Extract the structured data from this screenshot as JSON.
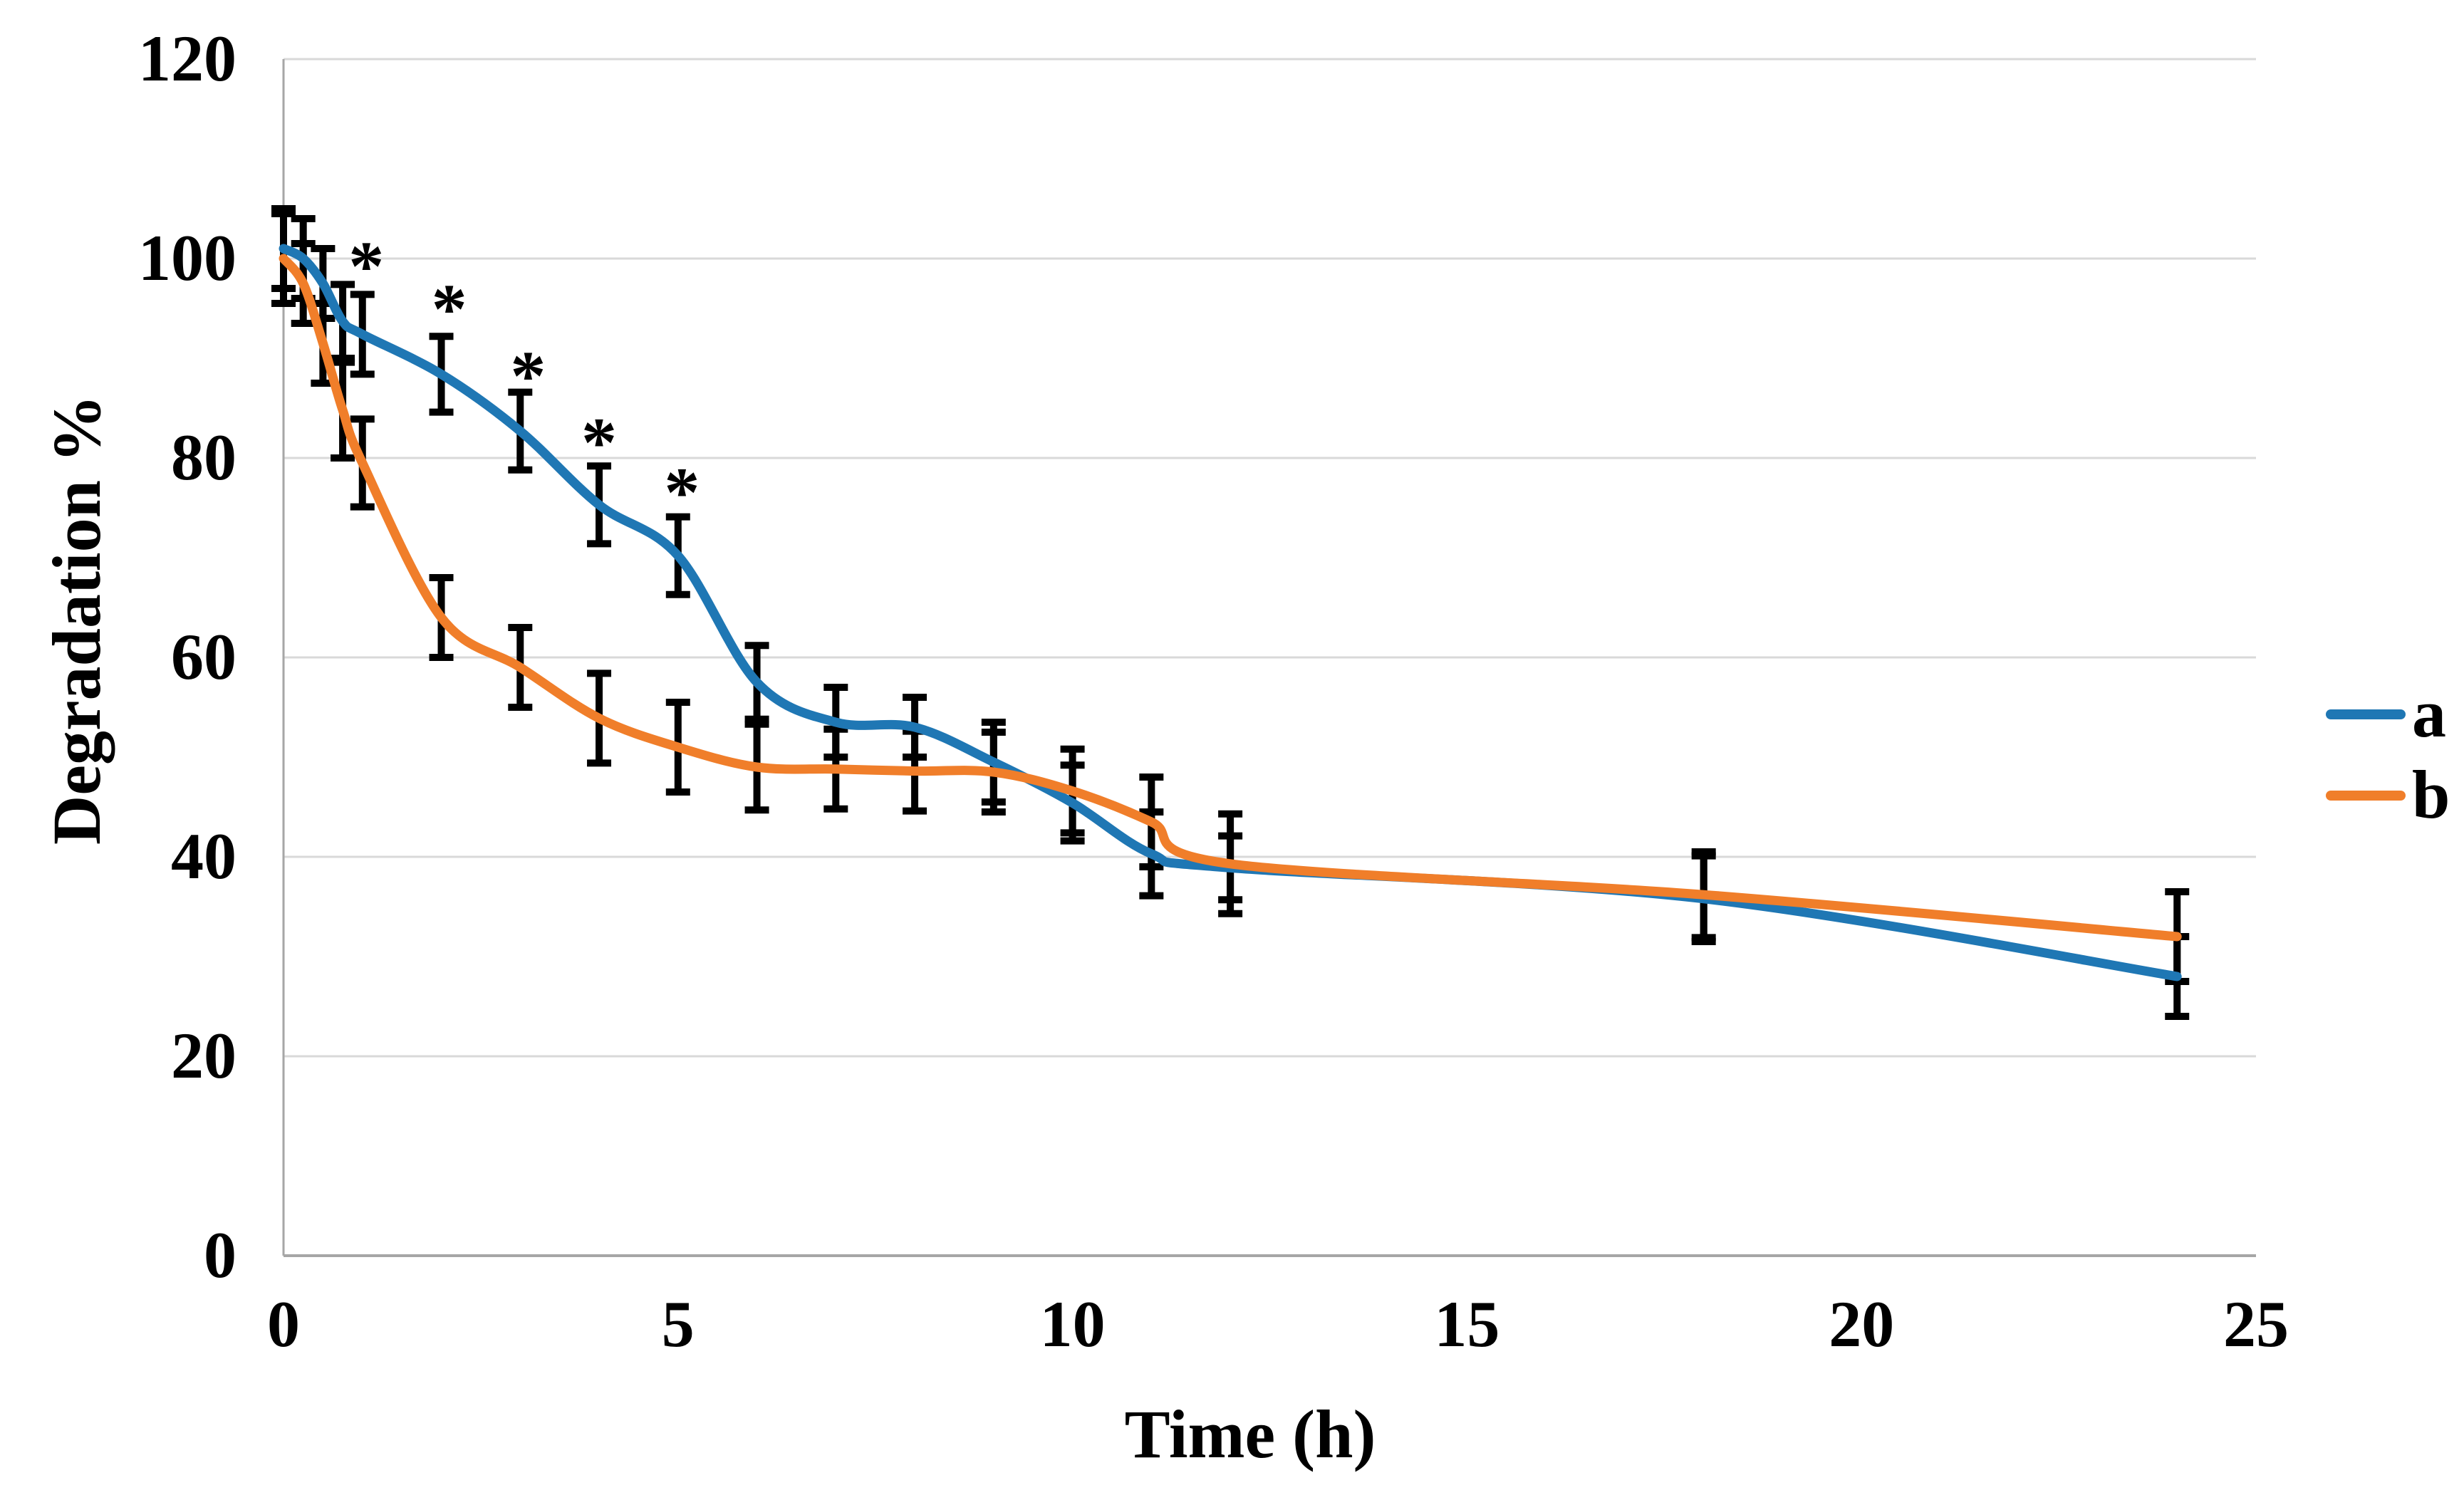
{
  "chart_data": {
    "type": "line",
    "title": "",
    "xlabel": "Time (h)",
    "ylabel": "Degradation %",
    "xlim": [
      0,
      25
    ],
    "ylim": [
      0,
      120
    ],
    "x_ticks": [
      0,
      5,
      10,
      15,
      20,
      25
    ],
    "y_ticks": [
      0,
      20,
      40,
      60,
      80,
      100,
      120
    ],
    "grid": "horizontal",
    "legend_position": "right",
    "background_color": "#ffffff",
    "gridline_color": "#d9d9d9",
    "axis_color": "#a6a6a6",
    "error_bar_color": "#000000",
    "x": [
      0,
      0.25,
      0.5,
      0.75,
      1,
      2,
      3,
      4,
      5,
      6,
      7,
      8,
      9,
      10,
      11,
      12,
      18,
      24
    ],
    "series": [
      {
        "name": "a",
        "color": "#1f77b4",
        "values": [
          101,
          100,
          97.5,
          93.7,
          92.4,
          88.4,
          82.7,
          75.3,
          70.2,
          57.5,
          53.5,
          53,
          49.5,
          45.4,
          40.3,
          38.9,
          35.8,
          28
        ],
        "errors": [
          4,
          4,
          3.5,
          3.7,
          4,
          3.8,
          3.9,
          3.9,
          3.9,
          3.7,
          3.5,
          3,
          4,
          3.8,
          4.2,
          3.2,
          4.3,
          4
        ]
      },
      {
        "name": "b",
        "color": "#f07e2a",
        "values": [
          100,
          97.5,
          91.5,
          84.8,
          79.5,
          64,
          59,
          53.9,
          51,
          49,
          48.8,
          48.6,
          48.5,
          46.6,
          43.5,
          39.3,
          36.2,
          32
        ],
        "errors": [
          4.5,
          4,
          4,
          4.8,
          4.4,
          4,
          4,
          4.5,
          4.5,
          4.3,
          4,
          4,
          4,
          4.2,
          4.5,
          5,
          4.3,
          4.5
        ]
      }
    ],
    "annotations": [
      {
        "symbol": "*",
        "x": 1.05,
        "y": 100.3
      },
      {
        "symbol": "*",
        "x": 2.1,
        "y": 96.0
      },
      {
        "symbol": "*",
        "x": 3.1,
        "y": 89.3
      },
      {
        "symbol": "*",
        "x": 4.0,
        "y": 82.6
      },
      {
        "symbol": "*",
        "x": 5.05,
        "y": 77.6
      }
    ]
  }
}
